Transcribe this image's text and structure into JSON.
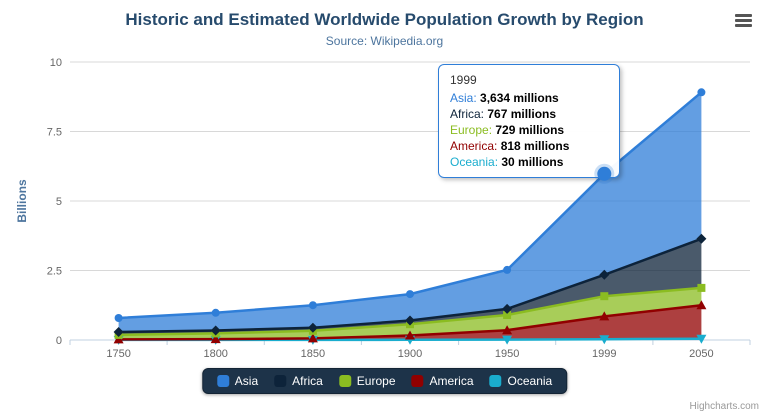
{
  "credit": "Highcharts.com",
  "tooltip": {
    "header": "1999",
    "rows": [
      {
        "label": "Asia",
        "value": "3,634 millions"
      },
      {
        "label": "Africa",
        "value": "767 millions"
      },
      {
        "label": "Europe",
        "value": "729 millions"
      },
      {
        "label": "America",
        "value": "818 millions"
      },
      {
        "label": "Oceania",
        "value": "30 millions"
      }
    ]
  },
  "chart_data": {
    "type": "area",
    "stacking": "normal",
    "title": "Historic and Estimated Worldwide Population Growth by Region",
    "subtitle": "Source: Wikipedia.org",
    "categories": [
      "1750",
      "1800",
      "1850",
      "1900",
      "1950",
      "1999",
      "2050"
    ],
    "unit": "millions",
    "series": [
      {
        "name": "Asia",
        "color": "#2f7ed8",
        "marker": "circle",
        "values": [
          502,
          635,
          809,
          947,
          1402,
          3634,
          5268
        ]
      },
      {
        "name": "Africa",
        "color": "#0d233a",
        "marker": "diamond",
        "values": [
          106,
          107,
          111,
          133,
          221,
          767,
          1766
        ]
      },
      {
        "name": "Europe",
        "color": "#8bbc21",
        "marker": "square",
        "values": [
          163,
          203,
          276,
          408,
          547,
          729,
          628
        ]
      },
      {
        "name": "America",
        "color": "#910000",
        "marker": "triangle",
        "values": [
          18,
          31,
          54,
          156,
          339,
          818,
          1201
        ]
      },
      {
        "name": "Oceania",
        "color": "#1aadce",
        "marker": "triangle-down",
        "values": [
          2,
          2,
          2,
          6,
          13,
          30,
          46
        ]
      }
    ],
    "ylabel": "Billions",
    "ylim": [
      0,
      10
    ],
    "yticks": [
      0,
      2.5,
      5,
      7.5,
      10
    ],
    "legend_position": "bottom",
    "hover": {
      "category": "1999",
      "series": "Asia"
    }
  }
}
